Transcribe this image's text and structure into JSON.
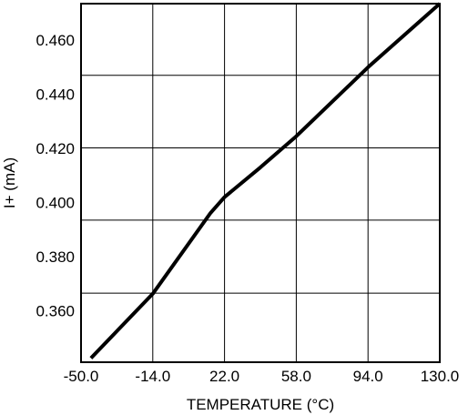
{
  "chart_data": {
    "type": "line",
    "title": "",
    "xlabel": "TEMPERATURE (°C)",
    "ylabel": "I+ (mA)",
    "x_ticks": [
      -50.0,
      -14.0,
      22.0,
      58.0,
      94.0,
      130.0
    ],
    "x_tick_labels": [
      "-50.0",
      "-14.0",
      "22.0",
      "58.0",
      "94.0",
      "130.0"
    ],
    "y_ticks": [
      0.36,
      0.38,
      0.4,
      0.42,
      0.44,
      0.46
    ],
    "y_tick_labels": [
      "0.360",
      "0.380",
      "0.400",
      "0.420",
      "0.440",
      "0.460"
    ],
    "xlim": [
      -50.0,
      130.0
    ],
    "ylim": [
      0.341,
      0.4735
    ],
    "grid": true,
    "series": [
      {
        "x": [
          -45.0,
          -14.0,
          15.0,
          22.0,
          40.0,
          58.0,
          94.0,
          130.0
        ],
        "y": [
          0.3425,
          0.3663,
          0.3962,
          0.402,
          0.413,
          0.4245,
          0.45,
          0.4735
        ]
      }
    ]
  }
}
